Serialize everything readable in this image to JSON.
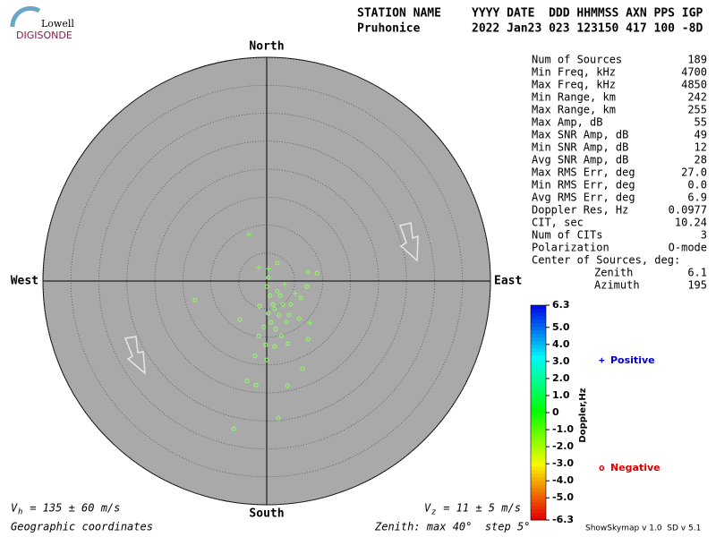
{
  "logo": {
    "top": "Lowell",
    "bottom": "DIGISONDE"
  },
  "header": {
    "labels": [
      "STATION NAME",
      "YYYY DATE  DDD HHMMSS AXN PPS IGP"
    ],
    "values": [
      "Pruhonice",
      "2022 Jan23 023 123150 417 100 -8D"
    ]
  },
  "chart_data": {
    "type": "skymap",
    "directions": {
      "north": "North",
      "south": "South",
      "east": "East",
      "west": "West"
    },
    "rlim": [
      0,
      40
    ],
    "rticks": [
      5,
      10,
      15,
      20,
      25,
      30,
      35,
      40
    ],
    "series": [
      {
        "name": "Positive",
        "symbol": "+",
        "color": "#0000cc",
        "marker_color": "#80ff50",
        "x": [
          -3.2,
          -1.4,
          7.7,
          5.1,
          3.2,
          0.3
        ],
        "y": [
          8.3,
          2.4,
          -7.5,
          -2.2,
          -0.6,
          2.2
        ]
      },
      {
        "name": "Negative",
        "symbol": "o",
        "color": "#dd0000",
        "marker_color": "#90ff60",
        "x": [
          1.9,
          7.4,
          9.0,
          -12.8,
          -4.8,
          -1.4,
          -0.2,
          -2.1,
          0,
          1.4,
          3.8,
          6.4,
          -3.5,
          -1.9,
          3.7,
          2.1,
          -5.9,
          7.2,
          6.1,
          5.8,
          7.4,
          2.4,
          1.1,
          0.3,
          0.8,
          1.9,
          2.9,
          0,
          0.6,
          1.4,
          2.2,
          -0.5,
          3.5,
          2.6,
          1.6,
          -1.3,
          4.3,
          0.3,
          4.0
        ],
        "y": [
          3.2,
          1.6,
          1.4,
          -3.4,
          -6.9,
          -9.8,
          -11.4,
          -13.4,
          -14.1,
          -11.7,
          -11.2,
          -15.7,
          -17.9,
          -18.6,
          -18.7,
          -24.5,
          -26.4,
          -1.0,
          -3.0,
          -6.7,
          -10.4,
          -2.6,
          -4.2,
          -5.8,
          -7.4,
          -1.8,
          -4.2,
          -1.0,
          -2.6,
          -5.0,
          -6.1,
          -8.2,
          -7.4,
          -9.8,
          -8.6,
          -4.5,
          -4.2,
          0.6,
          -6.1
        ]
      }
    ],
    "colorbar": {
      "label": "Doppler,Hz",
      "lim": [
        -6.3,
        6.3
      ],
      "ticks": [
        6.3,
        {
          "value": 5,
          "label": "5.0"
        },
        {
          "value": 4,
          "label": "4.0"
        },
        {
          "value": 3,
          "label": "3.0"
        },
        {
          "value": 2,
          "label": "2.0"
        },
        {
          "value": 1,
          "label": "1.0"
        },
        0,
        {
          "value": -1,
          "label": "-1.0"
        },
        {
          "value": -2,
          "label": "-2.0"
        },
        {
          "value": -3,
          "label": "-3.0"
        },
        {
          "value": -4,
          "label": "-4.0"
        },
        {
          "value": -5,
          "label": "-5.0"
        },
        -6.3
      ]
    },
    "stats": [
      [
        "Num of Sources",
        "189"
      ],
      [
        "Min Freq, kHz",
        "4700"
      ],
      [
        "Max Freq, kHz",
        "4850"
      ],
      [
        "Min Range, km",
        "242"
      ],
      [
        "Max Range, km",
        "255"
      ],
      [
        "Max Amp, dB",
        "55"
      ],
      [
        "Max SNR Amp, dB",
        "49"
      ],
      [
        "Min SNR Amp, dB",
        "12"
      ],
      [
        "Avg SNR Amp, dB",
        "28"
      ],
      [
        "Max RMS Err, deg",
        "27.0"
      ],
      [
        "Min RMS Err, deg",
        "0.0"
      ],
      [
        "Avg RMS Err, deg",
        "6.9"
      ],
      [
        "Doppler Res, Hz",
        "0.0977"
      ],
      [
        "CIT, sec",
        "10.24"
      ],
      [
        "Num of CITs",
        "3"
      ],
      [
        "Polarization",
        "O-mode"
      ]
    ],
    "center_of_sources": {
      "label": "Center of Sources, deg:",
      "rows": [
        [
          "Zenith",
          "6.1"
        ],
        [
          "Azimuth",
          "195"
        ]
      ]
    },
    "vh": {
      "symbol": "V",
      "sub": "h",
      "text": " = 135 ± 60 m/s"
    },
    "vz": {
      "symbol": "V",
      "sub": "z",
      "text": " = 11 ± 5 m/s"
    },
    "coordinates": "Geographic coordinates",
    "zenith_note": "Zenith: max 40°  step 5°",
    "version": "ShowSkymap v 1.0  SD v 5.1"
  }
}
